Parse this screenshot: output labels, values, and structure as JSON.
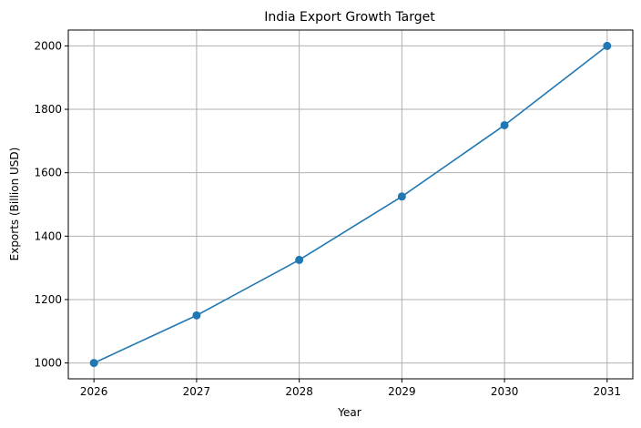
{
  "chart_data": {
    "type": "line",
    "title": "India Export Growth Target",
    "xlabel": "Year",
    "ylabel": "Exports (Billion USD)",
    "x": [
      2026,
      2027,
      2028,
      2029,
      2030,
      2031
    ],
    "series": [
      {
        "values": [
          1000,
          1150,
          1325,
          1525,
          1750,
          2000
        ]
      }
    ],
    "xticks": [
      "2026",
      "2027",
      "2028",
      "2029",
      "2030",
      "2031"
    ],
    "yticks": [
      1000,
      1200,
      1400,
      1600,
      1800,
      2000
    ],
    "xlim": [
      2025.75,
      2031.25
    ],
    "ylim": [
      950,
      2050
    ],
    "grid": true,
    "marker": "circle",
    "colors": {
      "line": "#1f77b4",
      "grid": "#b0b0b0",
      "axis": "#000000"
    }
  }
}
